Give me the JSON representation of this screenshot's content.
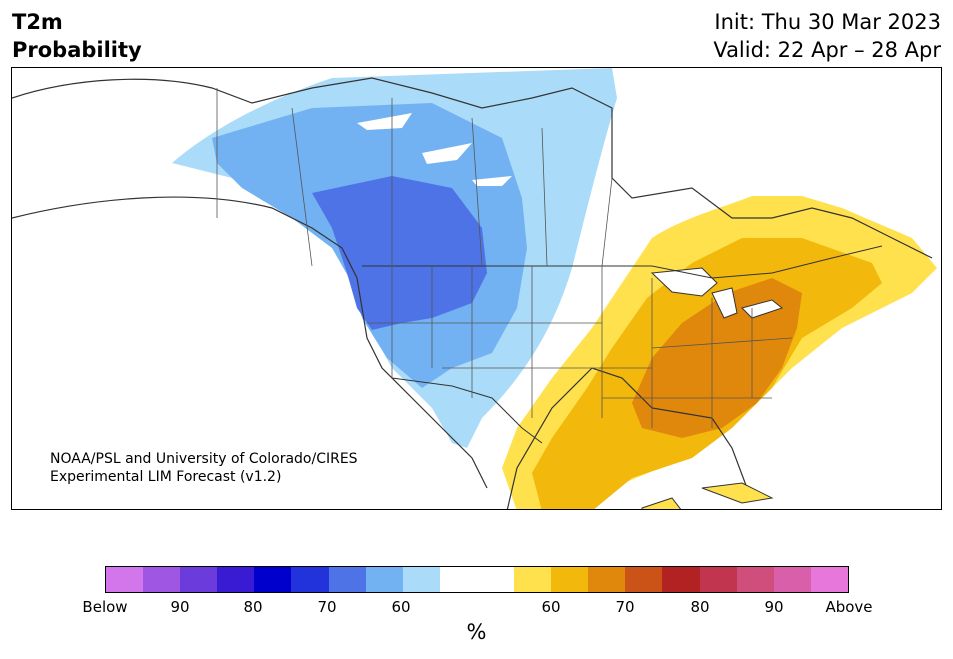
{
  "header": {
    "title_line1": "T2m",
    "title_line2": "Probability",
    "init": "Init: Thu 30 Mar 2023",
    "valid": "Valid: 22 Apr – 28 Apr"
  },
  "map": {
    "credit_line1": "NOAA/PSL and University of Colorado/CIRES",
    "credit_line2": "Experimental LIM Forecast (v1.2)",
    "colors": {
      "below_60": "#aadcfa",
      "below_70": "#73b2f2",
      "below_80": "#4e73e6",
      "above_60": "#ffe04d",
      "above_70": "#f2b80c",
      "above_80": "#e0880c",
      "land": "#ffffff",
      "lines": "#333333"
    }
  },
  "colorbar": {
    "colors": [
      "#d375eb",
      "#9f56e3",
      "#6b3bdb",
      "#3a1bd4",
      "#0000cd",
      "#2333db",
      "#4e73e6",
      "#73b2f2",
      "#aadcfa",
      "#ffffff",
      "#ffffff",
      "#ffe04d",
      "#f2b80c",
      "#e0880c",
      "#cc5317",
      "#b32222",
      "#c2354f",
      "#d04e7c",
      "#da5faa",
      "#e877db"
    ],
    "tick_labels": [
      "Below",
      "90",
      "80",
      "70",
      "60",
      "60",
      "70",
      "80",
      "90",
      "Above"
    ],
    "unit": "%"
  }
}
